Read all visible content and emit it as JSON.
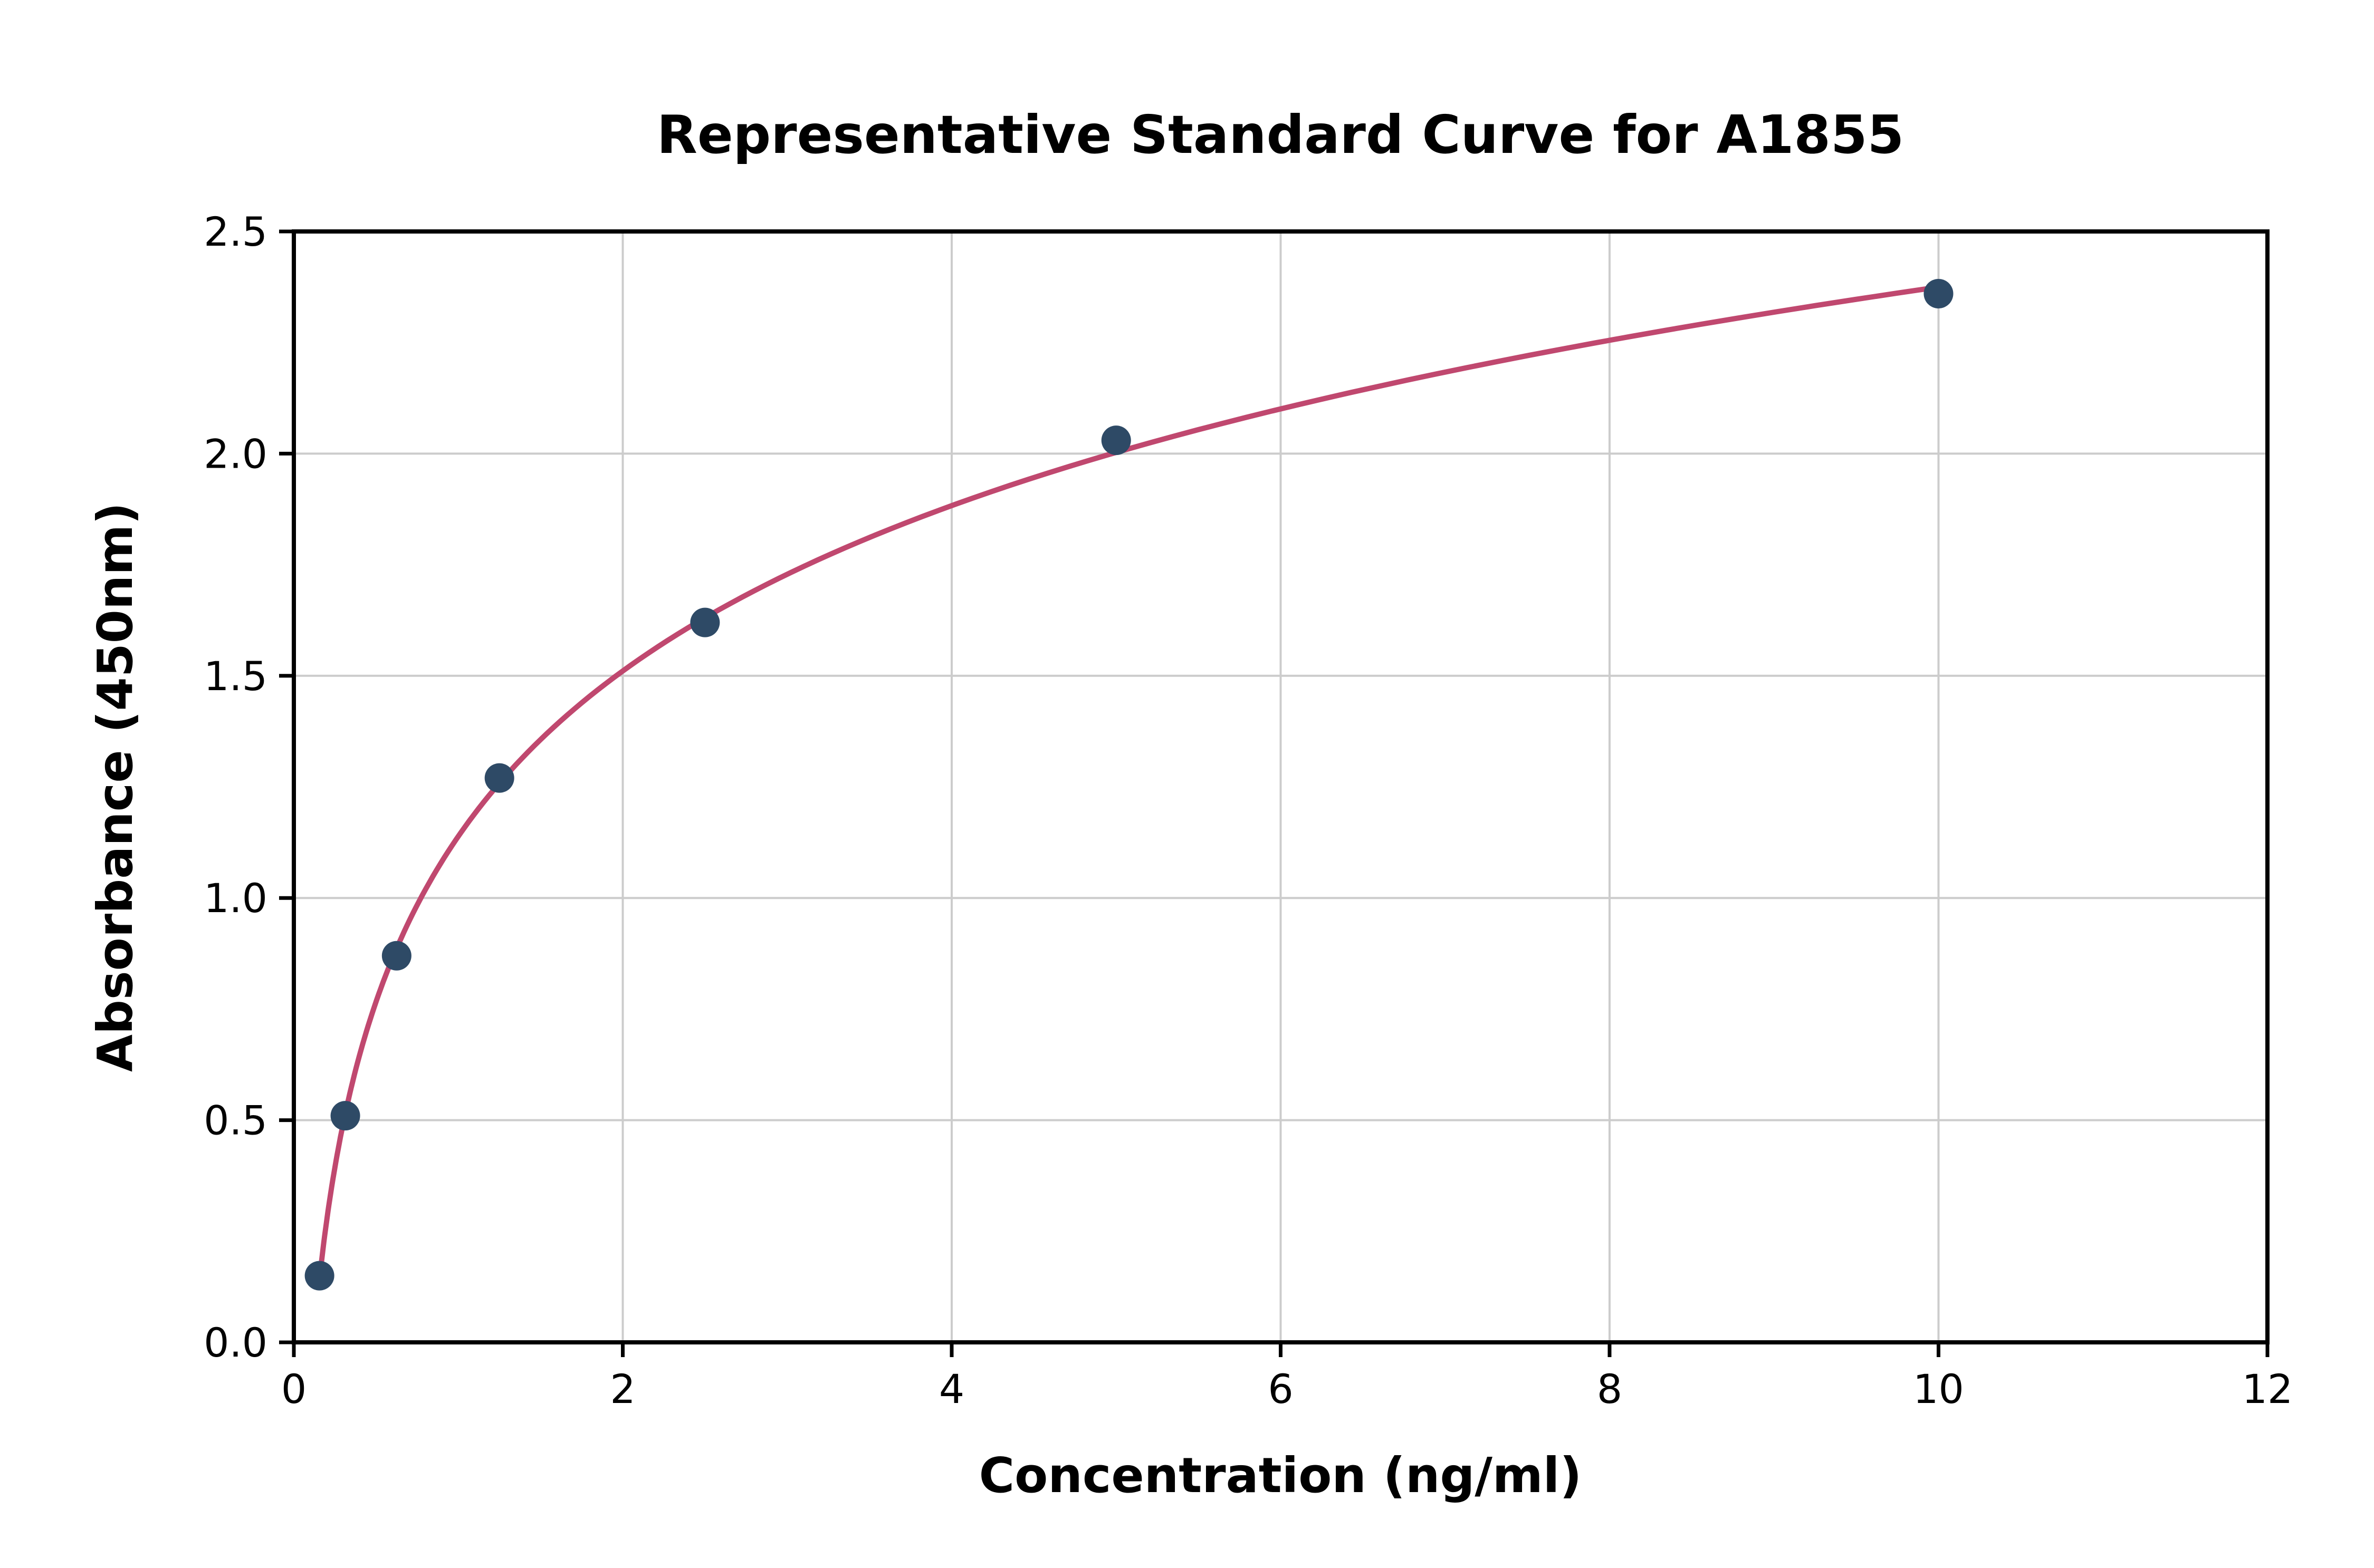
{
  "chart_data": {
    "type": "scatter",
    "title": "Representative Standard Curve for A1855",
    "xlabel": "Concentration (ng/ml)",
    "ylabel": "Absorbance (450nm)",
    "x": [
      0.156,
      0.313,
      0.625,
      1.25,
      2.5,
      5,
      10
    ],
    "y": [
      0.15,
      0.51,
      0.87,
      1.27,
      1.62,
      2.03,
      2.36
    ],
    "fit_curve": "logarithmic",
    "xlim": [
      0,
      12
    ],
    "ylim": [
      0,
      2.5
    ],
    "xticks": [
      0,
      2,
      4,
      6,
      8,
      10,
      12
    ],
    "xtick_labels": [
      "0",
      "2",
      "4",
      "6",
      "8",
      "10",
      "12"
    ],
    "yticks": [
      0,
      0.5,
      1,
      1.5,
      2,
      2.5
    ],
    "ytick_labels": [
      "0.0",
      "0.5",
      "1.0",
      "1.5",
      "2.0",
      "2.5"
    ],
    "grid": true,
    "legend": "none",
    "colors": {
      "point": "#2e4a66",
      "curve": "#c0486f",
      "grid": "#cccccc",
      "axis": "#000000",
      "background": "#ffffff"
    }
  }
}
